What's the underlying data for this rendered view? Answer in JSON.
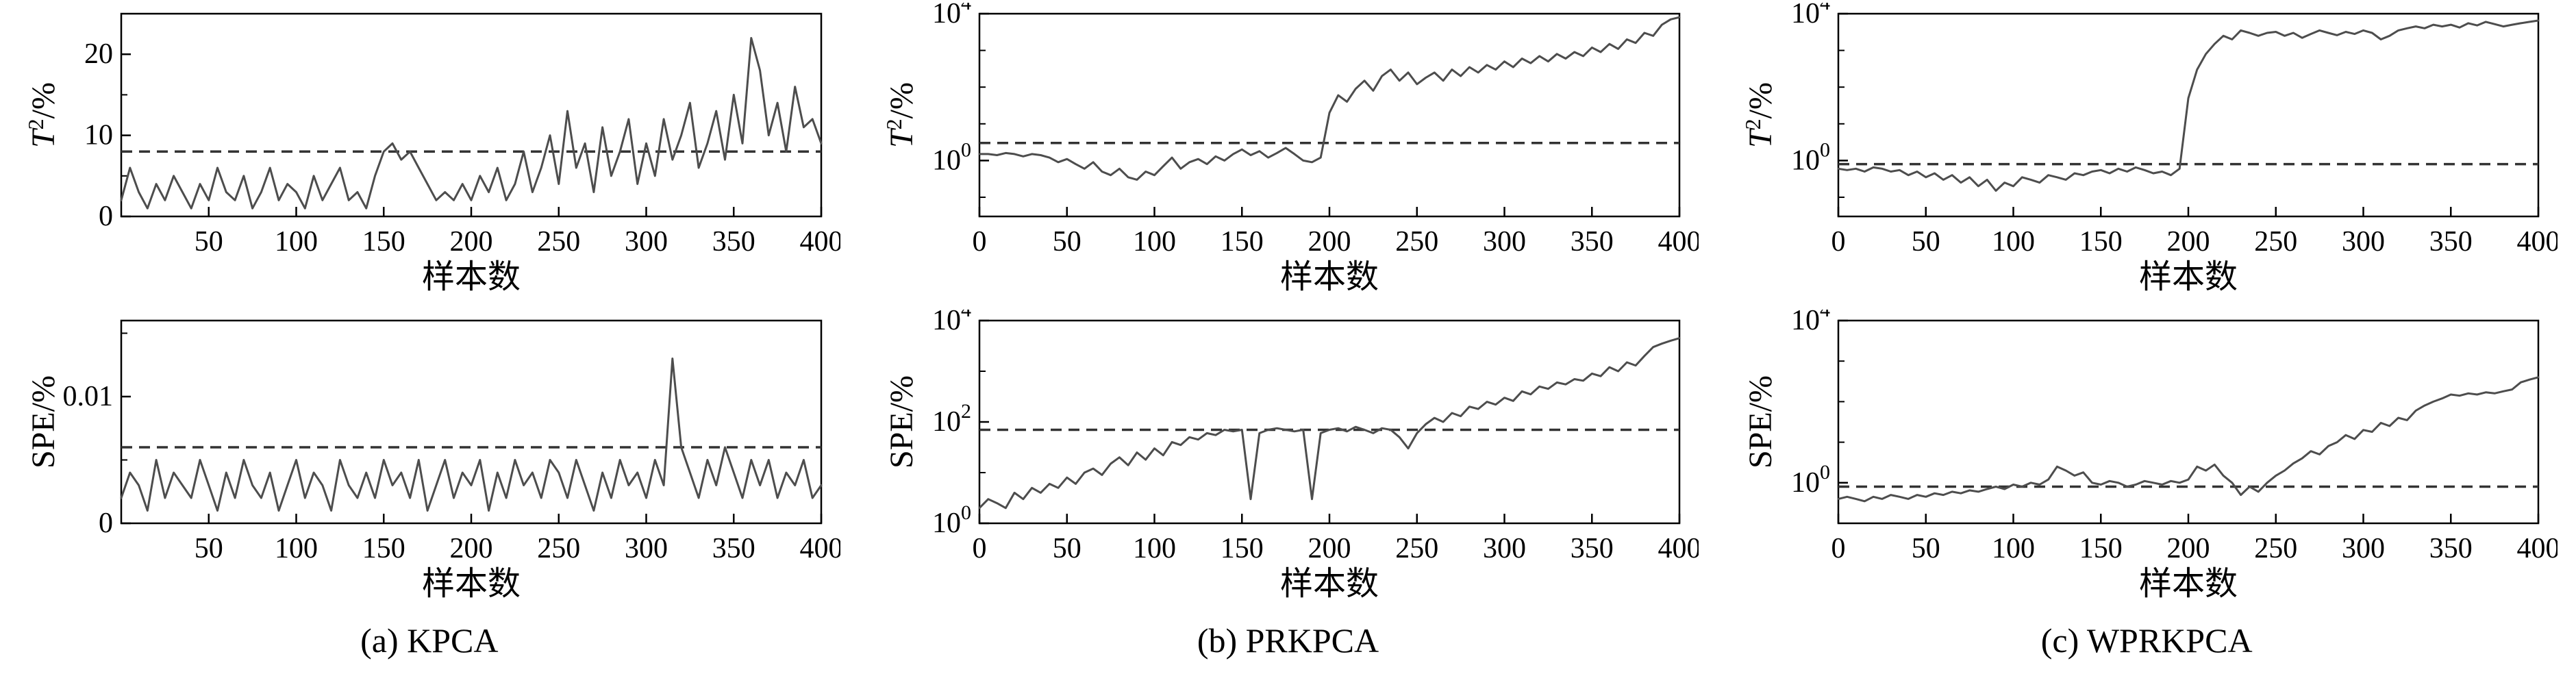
{
  "figure": {
    "captions": [
      {
        "label": "(a) KPCA"
      },
      {
        "label": "(b) PRKPCA"
      },
      {
        "label": "(c) WPRKPCA"
      }
    ],
    "style": {
      "background": "#ffffff",
      "axis_color": "#000000",
      "line_color": "#4d4d4d",
      "threshold_color": "#333333"
    }
  },
  "chart_data": [
    {
      "id": "kpca-t2",
      "type": "line",
      "group": "(a) KPCA",
      "ylabel_parts": [
        {
          "t": "T",
          "i": true
        },
        {
          "t": "2",
          "sup": true
        },
        {
          "t": "/%"
        }
      ],
      "xlabel": "样本数",
      "yscale": "linear",
      "xlim": [
        0,
        400
      ],
      "ylim": [
        0,
        25
      ],
      "xticks": [
        50,
        100,
        150,
        200,
        250,
        300,
        350,
        400
      ],
      "yticks": [
        {
          "v": 0,
          "label": "0"
        },
        {
          "v": 10,
          "label": "10"
        },
        {
          "v": 20,
          "label": "20"
        }
      ],
      "yticks_minor": [
        5,
        15
      ],
      "threshold": 8,
      "x_start": 0,
      "x_step": 5,
      "y": [
        2,
        6,
        3,
        1,
        4,
        2,
        5,
        3,
        1,
        4,
        2,
        6,
        3,
        2,
        5,
        1,
        3,
        6,
        2,
        4,
        3,
        1,
        5,
        2,
        4,
        6,
        2,
        3,
        1,
        5,
        8,
        9,
        7,
        8,
        6,
        4,
        2,
        3,
        2,
        4,
        2,
        5,
        3,
        6,
        2,
        4,
        8,
        3,
        6,
        10,
        4,
        13,
        6,
        9,
        3,
        11,
        5,
        8,
        12,
        4,
        9,
        5,
        12,
        7,
        10,
        14,
        6,
        9,
        13,
        7,
        15,
        9,
        22,
        18,
        10,
        14,
        8,
        16,
        11,
        12,
        9
      ]
    },
    {
      "id": "prkpca-t2",
      "type": "line",
      "group": "(b) PRKPCA",
      "ylabel_parts": [
        {
          "t": "T",
          "i": true
        },
        {
          "t": "2",
          "sup": true
        },
        {
          "t": "/%"
        }
      ],
      "xlabel": "样本数",
      "yscale": "log",
      "xlim": [
        0,
        400
      ],
      "ylim": [
        0.03,
        10000
      ],
      "xticks": [
        0,
        50,
        100,
        150,
        200,
        250,
        300,
        350,
        400
      ],
      "yticks": [
        {
          "v": 1,
          "exp": 0
        },
        {
          "v": 10000,
          "exp": 4
        }
      ],
      "threshold": 3,
      "x_start": 0,
      "x_step": 5,
      "y": [
        1.5,
        1.5,
        1.4,
        1.6,
        1.5,
        1.3,
        1.5,
        1.4,
        1.2,
        0.9,
        1.1,
        0.8,
        0.6,
        0.9,
        0.5,
        0.4,
        0.6,
        0.35,
        0.3,
        0.5,
        0.4,
        0.7,
        1.2,
        0.6,
        0.9,
        1.1,
        0.8,
        1.3,
        1.0,
        1.5,
        2.0,
        1.4,
        1.8,
        1.2,
        1.6,
        2.2,
        1.5,
        1.0,
        0.9,
        1.2,
        20,
        60,
        40,
        90,
        150,
        80,
        200,
        300,
        150,
        250,
        120,
        180,
        250,
        150,
        300,
        200,
        350,
        250,
        400,
        300,
        500,
        350,
        600,
        450,
        700,
        500,
        800,
        600,
        900,
        700,
        1200,
        900,
        1500,
        1100,
        2000,
        1600,
        3000,
        2500,
        5000,
        7000,
        8000
      ]
    },
    {
      "id": "wprkpca-t2",
      "type": "line",
      "group": "(c) WPRKPCA",
      "ylabel_parts": [
        {
          "t": "T",
          "i": true
        },
        {
          "t": "2",
          "sup": true
        },
        {
          "t": "/%"
        }
      ],
      "xlabel": "样本数",
      "yscale": "log",
      "xlim": [
        0,
        400
      ],
      "ylim": [
        0.03,
        10000
      ],
      "xticks": [
        0,
        50,
        100,
        150,
        200,
        250,
        300,
        350,
        400
      ],
      "yticks": [
        {
          "v": 1,
          "exp": 0
        },
        {
          "v": 10000,
          "exp": 4
        }
      ],
      "threshold": 0.8,
      "x_start": 0,
      "x_step": 5,
      "y": [
        0.6,
        0.55,
        0.6,
        0.5,
        0.65,
        0.6,
        0.5,
        0.55,
        0.4,
        0.5,
        0.35,
        0.45,
        0.3,
        0.4,
        0.25,
        0.35,
        0.2,
        0.3,
        0.15,
        0.25,
        0.2,
        0.35,
        0.3,
        0.25,
        0.4,
        0.35,
        0.3,
        0.45,
        0.4,
        0.5,
        0.55,
        0.45,
        0.6,
        0.5,
        0.65,
        0.55,
        0.45,
        0.5,
        0.4,
        0.6,
        50,
        300,
        800,
        1500,
        2500,
        2000,
        3500,
        3000,
        2500,
        3000,
        3200,
        2500,
        3000,
        2200,
        2800,
        3500,
        3000,
        2600,
        3200,
        2800,
        3500,
        3000,
        2000,
        2500,
        3500,
        4000,
        4500,
        4000,
        5000,
        4500,
        5000,
        4200,
        5500,
        4800,
        6000,
        5200,
        4500,
        5000,
        5500,
        6000,
        6500
      ]
    },
    {
      "id": "kpca-spe",
      "type": "line",
      "group": "(a) KPCA",
      "ylabel_parts": [
        {
          "t": "SPE/%"
        }
      ],
      "xlabel": "样本数",
      "yscale": "linear",
      "xlim": [
        0,
        400
      ],
      "ylim": [
        0,
        0.016
      ],
      "xticks": [
        50,
        100,
        150,
        200,
        250,
        300,
        350,
        400
      ],
      "yticks": [
        {
          "v": 0,
          "label": "0"
        },
        {
          "v": 0.01,
          "label": "0.01"
        }
      ],
      "yticks_minor": [
        0.005,
        0.015
      ],
      "threshold": 0.006,
      "x_start": 0,
      "x_step": 5,
      "y": [
        0.002,
        0.004,
        0.003,
        0.001,
        0.005,
        0.002,
        0.004,
        0.003,
        0.002,
        0.005,
        0.003,
        0.001,
        0.004,
        0.002,
        0.005,
        0.003,
        0.002,
        0.004,
        0.001,
        0.003,
        0.005,
        0.002,
        0.004,
        0.003,
        0.001,
        0.005,
        0.003,
        0.002,
        0.004,
        0.002,
        0.005,
        0.003,
        0.004,
        0.002,
        0.005,
        0.001,
        0.003,
        0.005,
        0.002,
        0.004,
        0.003,
        0.005,
        0.001,
        0.004,
        0.002,
        0.005,
        0.003,
        0.004,
        0.002,
        0.005,
        0.004,
        0.002,
        0.005,
        0.003,
        0.001,
        0.004,
        0.002,
        0.005,
        0.003,
        0.004,
        0.002,
        0.005,
        0.003,
        0.013,
        0.006,
        0.004,
        0.002,
        0.005,
        0.003,
        0.006,
        0.004,
        0.002,
        0.005,
        0.003,
        0.005,
        0.002,
        0.004,
        0.003,
        0.005,
        0.002,
        0.003
      ]
    },
    {
      "id": "prkpca-spe",
      "type": "line",
      "group": "(b) PRKPCA",
      "ylabel_parts": [
        {
          "t": "SPE/%"
        }
      ],
      "xlabel": "样本数",
      "yscale": "log",
      "xlim": [
        0,
        400
      ],
      "ylim": [
        1,
        10000
      ],
      "xticks": [
        0,
        50,
        100,
        150,
        200,
        250,
        300,
        350,
        400
      ],
      "yticks": [
        {
          "v": 1,
          "exp": 0
        },
        {
          "v": 100,
          "exp": 2
        },
        {
          "v": 10000,
          "exp": 4
        }
      ],
      "threshold": 70,
      "x_start": 0,
      "x_step": 5,
      "y": [
        2,
        3,
        2.5,
        2,
        4,
        3,
        5,
        4,
        6,
        5,
        8,
        6,
        10,
        12,
        9,
        15,
        20,
        14,
        25,
        18,
        30,
        22,
        40,
        35,
        50,
        45,
        60,
        55,
        70,
        65,
        70,
        3,
        60,
        70,
        75,
        70,
        65,
        70,
        3,
        60,
        70,
        75,
        65,
        80,
        70,
        60,
        75,
        70,
        50,
        30,
        60,
        90,
        120,
        100,
        150,
        130,
        200,
        180,
        250,
        220,
        300,
        260,
        400,
        350,
        500,
        450,
        600,
        550,
        700,
        650,
        900,
        800,
        1200,
        1000,
        1500,
        1300,
        2000,
        3000,
        3500,
        4000,
        4500
      ]
    },
    {
      "id": "wprkpca-spe",
      "type": "line",
      "group": "(c) WPRKPCA",
      "ylabel_parts": [
        {
          "t": "SPE/%"
        }
      ],
      "xlabel": "样本数",
      "yscale": "log",
      "xlim": [
        0,
        400
      ],
      "ylim": [
        0.1,
        10000
      ],
      "xticks": [
        0,
        50,
        100,
        150,
        200,
        250,
        300,
        350,
        400
      ],
      "yticks": [
        {
          "v": 1,
          "exp": 0
        },
        {
          "v": 10000,
          "exp": 4
        }
      ],
      "threshold": 0.8,
      "x_start": 0,
      "x_step": 5,
      "y": [
        0.4,
        0.45,
        0.4,
        0.35,
        0.45,
        0.4,
        0.5,
        0.45,
        0.4,
        0.5,
        0.45,
        0.55,
        0.5,
        0.6,
        0.55,
        0.65,
        0.6,
        0.7,
        0.8,
        0.7,
        0.9,
        0.8,
        1.0,
        0.9,
        1.2,
        2.5,
        2.0,
        1.5,
        1.8,
        1.0,
        0.9,
        1.1,
        1.0,
        0.8,
        0.9,
        1.1,
        1.0,
        0.9,
        1.1,
        1.0,
        1.2,
        2.5,
        2.0,
        2.8,
        1.5,
        1.0,
        0.5,
        0.8,
        0.6,
        1.0,
        1.5,
        2.0,
        3.0,
        4.0,
        6.0,
        5.0,
        8.0,
        10,
        15,
        12,
        20,
        18,
        30,
        25,
        40,
        35,
        60,
        80,
        100,
        120,
        150,
        140,
        160,
        150,
        170,
        160,
        180,
        200,
        300,
        350,
        400
      ]
    }
  ]
}
